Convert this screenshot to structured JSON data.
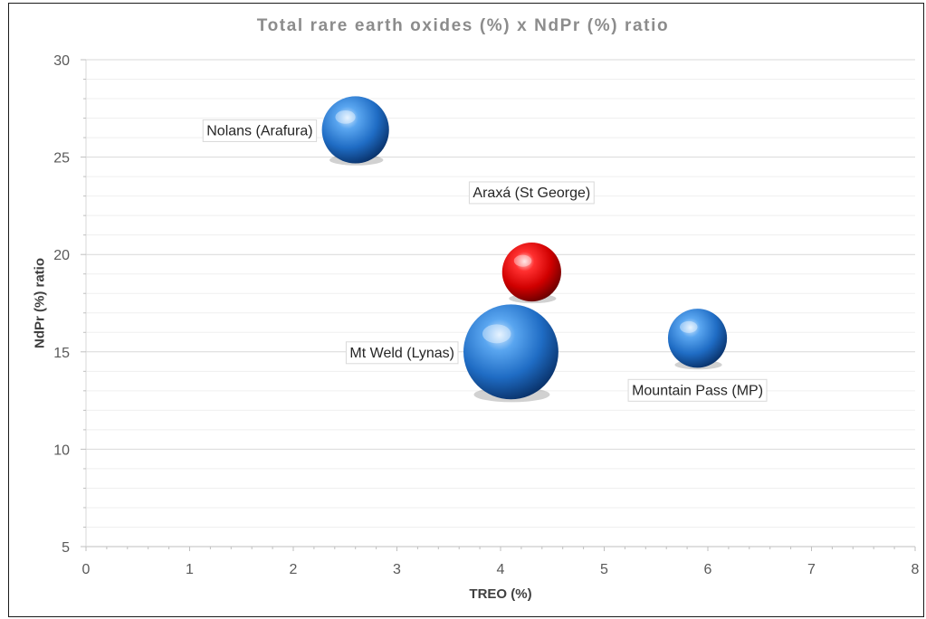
{
  "chart_data": {
    "type": "bubble",
    "title": "Total rare earth oxides (%) x NdPr (%) ratio",
    "xlabel": "TREO (%)",
    "ylabel": "NdPr (%) ratio",
    "xlim": [
      0,
      8
    ],
    "ylim": [
      5,
      30
    ],
    "x_ticks": [
      0,
      1,
      2,
      3,
      4,
      5,
      6,
      7,
      8
    ],
    "y_ticks": [
      5,
      10,
      15,
      20,
      25,
      30
    ],
    "grid": true,
    "points": [
      {
        "label": "Nolans (Arafura)",
        "x": 2.6,
        "y": 26.4,
        "size": 2.2,
        "color": "#2d7fd6",
        "label_side": "left"
      },
      {
        "label": "Araxá (St George)",
        "x": 4.3,
        "y": 19.1,
        "size": 1.7,
        "color": "#e00000",
        "label_side": "above"
      },
      {
        "label": "Mt Weld (Lynas)",
        "x": 4.1,
        "y": 15.0,
        "size": 4.4,
        "color": "#2d7fd6",
        "label_side": "left"
      },
      {
        "label": "Mountain Pass (MP)",
        "x": 5.9,
        "y": 15.7,
        "size": 1.7,
        "color": "#2d7fd6",
        "label_side": "below"
      }
    ]
  }
}
